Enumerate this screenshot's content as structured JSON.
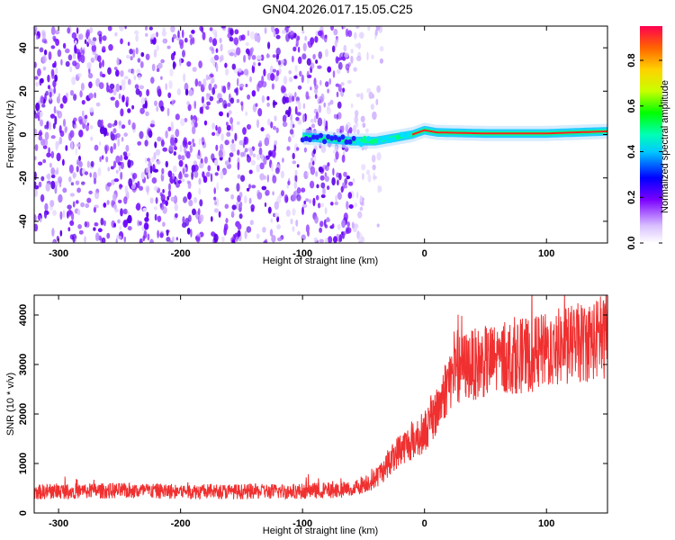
{
  "title": "GN04.2026.017.15.05.C25",
  "chart_data": [
    {
      "type": "heatmap",
      "title": "GN04.2026.017.15.05.C25",
      "xlabel": "Height of straight line (km)",
      "ylabel": "Frequency (Hz)",
      "xlim": [
        -320,
        150
      ],
      "ylim": [
        -50,
        50
      ],
      "x_ticks": [
        -300,
        -200,
        -100,
        0,
        100
      ],
      "y_ticks": [
        -40,
        -20,
        0,
        20,
        40
      ],
      "x_tick_labels": [
        "-300",
        "-200",
        "-100",
        "0",
        "100"
      ],
      "y_tick_labels": [
        "-40",
        "-20",
        "0",
        "20",
        "40"
      ],
      "colorbar": {
        "label": "Normalized spectral amplitude",
        "range": [
          0,
          0.95
        ],
        "ticks": [
          0.0,
          0.2,
          0.4,
          0.6,
          0.8
        ],
        "tick_labels": [
          "0.0",
          "0.2",
          "0.4",
          "0.6",
          "0.8"
        ]
      },
      "ridge_frequency_hz": [
        [
          -100,
          -1
        ],
        [
          -80,
          -2
        ],
        [
          -60,
          -3
        ],
        [
          -50,
          -3
        ],
        [
          -40,
          -3
        ],
        [
          -30,
          -2
        ],
        [
          -20,
          -1
        ],
        [
          -10,
          0
        ],
        [
          0,
          2
        ],
        [
          10,
          1
        ],
        [
          50,
          0.5
        ],
        [
          100,
          0.5
        ],
        [
          150,
          1.5
        ]
      ]
    },
    {
      "type": "line",
      "xlabel": "Height of straight line (km)",
      "ylabel": "SNR (10 * v/v)",
      "xlim": [
        -320,
        150
      ],
      "ylim": [
        0,
        4400
      ],
      "x_ticks": [
        -300,
        -200,
        -100,
        0,
        100
      ],
      "y_ticks": [
        0,
        1000,
        2000,
        3000,
        4000
      ],
      "x_tick_labels": [
        "-300",
        "-200",
        "-100",
        "0",
        "100"
      ],
      "y_tick_labels": [
        "0",
        "1000",
        "2000",
        "3000",
        "4000"
      ],
      "series": [
        {
          "color": "#f03030",
          "x": [
            -320,
            -300,
            -250,
            -200,
            -150,
            -100,
            -60,
            -40,
            -30,
            -20,
            -10,
            0,
            10,
            20,
            30,
            50,
            70,
            90,
            110,
            130,
            150
          ],
          "y": [
            420,
            440,
            450,
            440,
            430,
            440,
            480,
            700,
            1000,
            1300,
            1450,
            1650,
            2050,
            2700,
            2950,
            3050,
            3150,
            3200,
            3350,
            3450,
            3550
          ]
        }
      ]
    }
  ]
}
